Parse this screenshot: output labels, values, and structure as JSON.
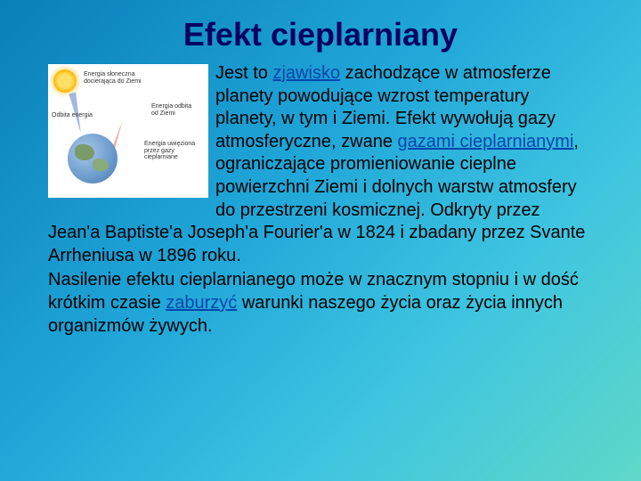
{
  "title": "Efekt cieplarniany",
  "diagram": {
    "label1": "Energia słoneczna docierająca do Ziemi",
    "label2": "Odbita energia",
    "label3": "Energia odbita od Ziemi",
    "label4": "Energia uwięziona przez gazy cieplarniane"
  },
  "text": {
    "link1": "zjawisko",
    "p1a": "Jest to ",
    "p1b": " zachodzące w atmosferze planety powodujące wzrost temperatury planety, w tym i Ziemi. Efekt wywołują gazy atmosferyczne, zwane ",
    "link2": "gazami cieplarnianymi",
    "p1c": ", ograniczające promieniowanie cieplne powierzchni Ziemi i dolnych warstw atmosfery do przestrzeni kosmicznej. Odkryty przez Jean'a Baptiste'a Joseph'a Fourier'a w 1824 i zbadany przez Svante Arrheniusa w 1896 roku.",
    "p2a": "Nasilenie efektu cieplarnianego może w znacznym stopniu i w dość krótkim czasie ",
    "link3": "zaburzyć",
    "p2b": " warunki naszego życia oraz życia innych organizmów żywych."
  },
  "colors": {
    "title_color": "#000060",
    "link_color": "#0645ad",
    "bg_start": "#0a7fb8",
    "bg_end": "#5fd8c8"
  },
  "typography": {
    "title_fontsize": 36,
    "body_fontsize": 20,
    "title_font": "Comic Sans MS",
    "body_font": "Comic Sans MS"
  }
}
